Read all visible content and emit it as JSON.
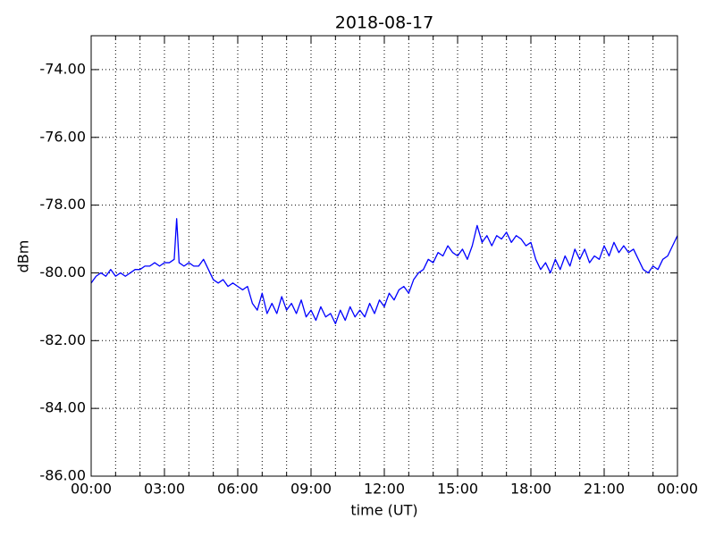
{
  "chart_data": {
    "type": "line",
    "title": "2018-08-17",
    "xlabel": "time (UT)",
    "ylabel": "dBm",
    "x": [
      0,
      0.2,
      0.4,
      0.6,
      0.8,
      1.0,
      1.2,
      1.4,
      1.6,
      1.8,
      2.0,
      2.2,
      2.4,
      2.6,
      2.8,
      3.0,
      3.2,
      3.4,
      3.5,
      3.6,
      3.8,
      4.0,
      4.2,
      4.4,
      4.6,
      4.8,
      5.0,
      5.2,
      5.4,
      5.6,
      5.8,
      6.0,
      6.2,
      6.4,
      6.6,
      6.8,
      7.0,
      7.2,
      7.4,
      7.6,
      7.8,
      8.0,
      8.2,
      8.4,
      8.6,
      8.8,
      9.0,
      9.2,
      9.4,
      9.6,
      9.8,
      10.0,
      10.2,
      10.4,
      10.6,
      10.8,
      11.0,
      11.2,
      11.4,
      11.6,
      11.8,
      12.0,
      12.2,
      12.4,
      12.6,
      12.8,
      13.0,
      13.2,
      13.4,
      13.6,
      13.8,
      14.0,
      14.2,
      14.4,
      14.6,
      14.8,
      15.0,
      15.2,
      15.4,
      15.6,
      15.8,
      16.0,
      16.2,
      16.4,
      16.6,
      16.8,
      17.0,
      17.2,
      17.4,
      17.6,
      17.8,
      18.0,
      18.2,
      18.4,
      18.6,
      18.8,
      19.0,
      19.2,
      19.4,
      19.6,
      19.8,
      20.0,
      20.2,
      20.4,
      20.6,
      20.8,
      21.0,
      21.2,
      21.4,
      21.6,
      21.8,
      22.0,
      22.2,
      22.4,
      22.6,
      22.8,
      23.0,
      23.2,
      23.4,
      23.6,
      23.8,
      24.0
    ],
    "series": [
      {
        "name": "dBm",
        "color": "#0000ff",
        "values": [
          -80.3,
          -80.1,
          -80.0,
          -80.1,
          -79.9,
          -80.1,
          -80.0,
          -80.1,
          -80.0,
          -79.9,
          -79.9,
          -79.8,
          -79.8,
          -79.7,
          -79.8,
          -79.7,
          -79.7,
          -79.6,
          -78.4,
          -79.7,
          -79.8,
          -79.7,
          -79.8,
          -79.8,
          -79.6,
          -79.9,
          -80.2,
          -80.3,
          -80.2,
          -80.4,
          -80.3,
          -80.4,
          -80.5,
          -80.4,
          -80.9,
          -81.1,
          -80.6,
          -81.2,
          -80.9,
          -81.2,
          -80.7,
          -81.1,
          -80.9,
          -81.2,
          -80.8,
          -81.3,
          -81.1,
          -81.4,
          -81.0,
          -81.3,
          -81.2,
          -81.5,
          -81.1,
          -81.4,
          -81.0,
          -81.3,
          -81.1,
          -81.3,
          -80.9,
          -81.2,
          -80.8,
          -81.0,
          -80.6,
          -80.8,
          -80.5,
          -80.4,
          -80.6,
          -80.2,
          -80.0,
          -79.9,
          -79.6,
          -79.7,
          -79.4,
          -79.5,
          -79.2,
          -79.4,
          -79.5,
          -79.3,
          -79.6,
          -79.2,
          -78.6,
          -79.1,
          -78.9,
          -79.2,
          -78.9,
          -79.0,
          -78.8,
          -79.1,
          -78.9,
          -79.0,
          -79.2,
          -79.1,
          -79.6,
          -79.9,
          -79.7,
          -80.0,
          -79.6,
          -79.9,
          -79.5,
          -79.8,
          -79.3,
          -79.6,
          -79.3,
          -79.7,
          -79.5,
          -79.6,
          -79.2,
          -79.5,
          -79.1,
          -79.4,
          -79.2,
          -79.4,
          -79.3,
          -79.6,
          -79.9,
          -80.0,
          -79.8,
          -79.9,
          -79.6,
          -79.5,
          -79.2,
          -78.9
        ]
      }
    ],
    "xlim": [
      0,
      24
    ],
    "xticks": [
      {
        "value": 0,
        "label": "00:00"
      },
      {
        "value": 3,
        "label": "03:00"
      },
      {
        "value": 6,
        "label": "06:00"
      },
      {
        "value": 9,
        "label": "09:00"
      },
      {
        "value": 12,
        "label": "12:00"
      },
      {
        "value": 15,
        "label": "15:00"
      },
      {
        "value": 18,
        "label": "18:00"
      },
      {
        "value": 21,
        "label": "21:00"
      },
      {
        "value": 24,
        "label": "00:00"
      }
    ],
    "xminorticks": [
      1,
      2,
      4,
      5,
      7,
      8,
      10,
      11,
      13,
      14,
      16,
      17,
      19,
      20,
      22,
      23
    ],
    "ylim": [
      -86,
      -73
    ],
    "yticks": [
      {
        "value": -86,
        "label": "-86.00"
      },
      {
        "value": -84,
        "label": "-84.00"
      },
      {
        "value": -82,
        "label": "-82.00"
      },
      {
        "value": -80,
        "label": "-80.00"
      },
      {
        "value": -78,
        "label": "-78.00"
      },
      {
        "value": -76,
        "label": "-76.00"
      },
      {
        "value": -74,
        "label": "-74.00"
      }
    ],
    "grid": true
  }
}
